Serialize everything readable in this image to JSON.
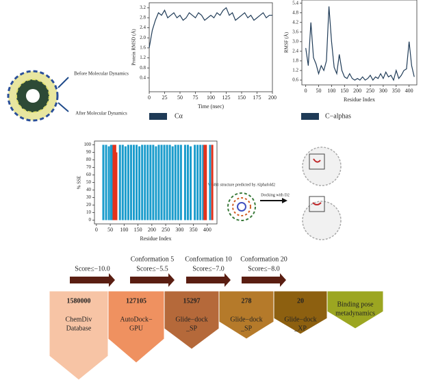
{
  "chart_data": [
    {
      "type": "line",
      "xlabel": "Time (nsec)",
      "ylabel": "Protein RMSD (Å)",
      "x": [
        0,
        5,
        10,
        15,
        20,
        25,
        30,
        35,
        40,
        45,
        50,
        55,
        60,
        65,
        70,
        75,
        80,
        85,
        90,
        95,
        100,
        105,
        110,
        115,
        120,
        125,
        130,
        135,
        140,
        145,
        150,
        155,
        160,
        165,
        170,
        175,
        180,
        185,
        190,
        195,
        200
      ],
      "series": [
        {
          "name": "Cα",
          "color": "#1f3b57",
          "values": [
            1.6,
            2.3,
            2.7,
            3.0,
            2.9,
            3.1,
            2.8,
            2.9,
            3.0,
            2.8,
            2.9,
            2.7,
            2.8,
            3.0,
            2.9,
            2.8,
            3.0,
            2.9,
            2.7,
            2.8,
            2.9,
            2.8,
            3.0,
            2.9,
            3.1,
            3.2,
            2.9,
            3.0,
            2.7,
            2.8,
            2.9,
            3.0,
            2.8,
            2.9,
            2.7,
            2.8,
            2.9,
            3.0,
            2.8,
            2.9,
            2.9
          ]
        }
      ],
      "xlim": [
        0,
        200
      ],
      "ylim": [
        -0.15,
        3.4
      ],
      "xticks": [
        0,
        25,
        50,
        75,
        100,
        125,
        150,
        175,
        200
      ],
      "yticks": [
        0.4,
        0.8,
        1.2,
        1.6,
        {
          "value": 2,
          "label": "2.0"
        },
        2.4,
        2.8,
        3.2
      ]
    },
    {
      "type": "line",
      "xlabel": "Residue Index",
      "ylabel": "RMSF (Å)",
      "x": [
        0,
        10,
        20,
        30,
        40,
        50,
        60,
        70,
        80,
        90,
        100,
        110,
        120,
        130,
        140,
        150,
        160,
        170,
        180,
        190,
        200,
        210,
        220,
        230,
        240,
        250,
        260,
        270,
        280,
        290,
        300,
        310,
        320,
        330,
        340,
        350,
        360,
        370,
        380,
        390,
        400,
        410,
        420
      ],
      "series": [
        {
          "name": "C−alphas",
          "color": "#1f3b57",
          "values": [
            2.6,
            1.5,
            4.2,
            2.0,
            1.6,
            1.0,
            1.5,
            1.2,
            1.8,
            5.2,
            3.0,
            1.4,
            1.0,
            2.2,
            1.2,
            0.8,
            0.7,
            1.0,
            0.7,
            0.6,
            0.7,
            0.6,
            0.8,
            0.6,
            0.7,
            0.9,
            0.6,
            0.8,
            0.7,
            1.0,
            0.7,
            1.1,
            0.8,
            0.9,
            0.6,
            1.2,
            0.7,
            0.9,
            1.2,
            1.3,
            3.0,
            1.5,
            0.8
          ]
        }
      ],
      "xlim": [
        -15,
        430
      ],
      "ylim": [
        0.3,
        5.6
      ],
      "xticks": [
        0,
        50,
        100,
        150,
        200,
        250,
        300,
        350,
        400
      ],
      "yticks": [
        0.6,
        1.2,
        1.8,
        2.4,
        {
          "value": 3,
          "label": "3.0"
        },
        3.6,
        4.2,
        4.8,
        5.4
      ]
    },
    {
      "type": "bar",
      "xlabel": "Residue Index",
      "ylabel": "% SSE",
      "series": [
        {
          "color": "#1b9ccc",
          "x": [
            25,
            35,
            45,
            53,
            58,
            85,
            95,
            105,
            115,
            125,
            135,
            145,
            155,
            165,
            175,
            185,
            195,
            205,
            215,
            225,
            235,
            245,
            255,
            265,
            275,
            285,
            295,
            305,
            320,
            330,
            340,
            355,
            365,
            375,
            385,
            410
          ],
          "values": [
            100,
            100,
            98,
            100,
            100,
            100,
            100,
            98,
            100,
            100,
            100,
            100,
            98,
            100,
            100,
            100,
            100,
            100,
            98,
            100,
            100,
            100,
            100,
            100,
            98,
            100,
            100,
            100,
            100,
            100,
            98,
            100,
            100,
            100,
            100,
            100
          ]
        },
        {
          "color": "#e3321c",
          "x": [
            62,
            68,
            72,
            390,
            395,
            418
          ],
          "values": [
            100,
            100,
            90,
            100,
            100,
            100
          ]
        }
      ],
      "xlim": [
        -7,
        435
      ],
      "ylim": [
        -5,
        105
      ],
      "xticks": [
        0,
        50,
        100,
        150,
        200,
        250,
        300,
        350,
        400
      ],
      "yticks": [
        0,
        10,
        20,
        30,
        40,
        50,
        60,
        70,
        80,
        90,
        100
      ]
    }
  ],
  "annotations": {
    "before_md": "Before Molecular Dynamics",
    "after_md": "After Molecular Dynamics",
    "wsb1": "WSB1 structure predicted by Alphafold2",
    "docking": "Docking with D2"
  },
  "pipeline": {
    "filters": [
      {
        "score": "Score≤−10.0"
      },
      {
        "conformation": "Conformation 5",
        "score": "Score≤−5.5"
      },
      {
        "conformation": "Conformation 10",
        "score": "Score≤−7.0"
      },
      {
        "conformation": "Conformation 20",
        "score": "Score≤−8.0"
      }
    ],
    "steps": [
      {
        "count": 1580000,
        "label": [
          "ChemDiv",
          "Database"
        ],
        "color": "#f7c4a5"
      },
      {
        "count": 127105,
        "label": [
          "AutoDock−",
          "GPU"
        ],
        "color": "#ef9160"
      },
      {
        "count": 15297,
        "label": [
          "Glide−dock",
          "_SP"
        ],
        "color": "#b5693a"
      },
      {
        "count": 278,
        "label": [
          "Glide−dock",
          "_SP"
        ],
        "color": "#b57a2a"
      },
      {
        "count": 20,
        "label": [
          "Glide−dock",
          "_XP"
        ],
        "color": "#8d6010"
      },
      {
        "label": [
          "Binding pose",
          "metadynamics"
        ],
        "color": "#9ca621"
      }
    ]
  }
}
